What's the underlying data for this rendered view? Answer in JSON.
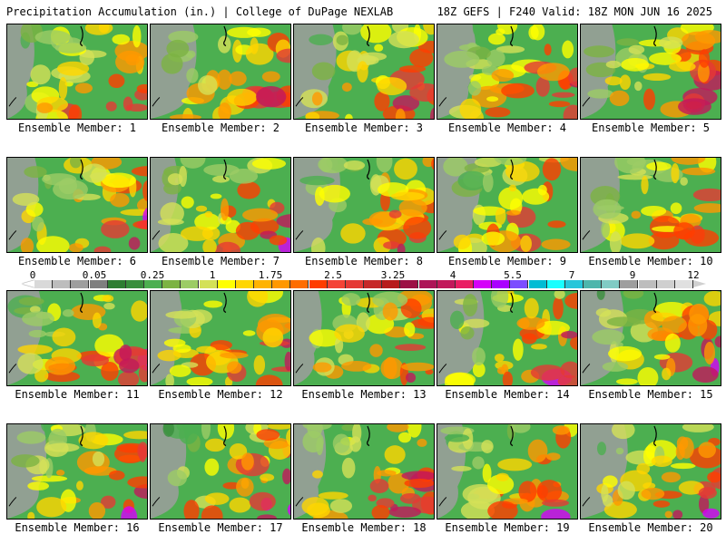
{
  "header": {
    "left_title": "Precipitation Accumulation (in.) | College of DuPage NEXLAB",
    "right_title": "18Z GEFS | F240 Valid: 18Z MON JUN 16 2025"
  },
  "panels": [
    {
      "label": "Ensemble Member: 1"
    },
    {
      "label": "Ensemble Member: 2"
    },
    {
      "label": "Ensemble Member: 3"
    },
    {
      "label": "Ensemble Member: 4"
    },
    {
      "label": "Ensemble Member: 5"
    },
    {
      "label": "Ensemble Member: 6"
    },
    {
      "label": "Ensemble Member: 7"
    },
    {
      "label": "Ensemble Member: 8"
    },
    {
      "label": "Ensemble Member: 9"
    },
    {
      "label": "Ensemble Member: 10"
    },
    {
      "label": "Ensemble Member: 11"
    },
    {
      "label": "Ensemble Member: 12"
    },
    {
      "label": "Ensemble Member: 13"
    },
    {
      "label": "Ensemble Member: 14"
    },
    {
      "label": "Ensemble Member: 15"
    },
    {
      "label": "Ensemble Member: 16"
    },
    {
      "label": "Ensemble Member: 17"
    },
    {
      "label": "Ensemble Member: 18"
    },
    {
      "label": "Ensemble Member: 19"
    },
    {
      "label": "Ensemble Member: 20"
    }
  ],
  "colorbar": {
    "labels": [
      "0",
      "0.05",
      "0.25",
      "1",
      "1.75",
      "2.5",
      "3.25",
      "4",
      "5.5",
      "7",
      "9",
      "12"
    ],
    "colors": [
      "#d9d9d9",
      "#bdbdbd",
      "#9e9e9e",
      "#7f7f7f",
      "#2e7d32",
      "#388e3c",
      "#4caf50",
      "#7cb342",
      "#9ccc65",
      "#d4e157",
      "#ffff00",
      "#ffd600",
      "#ffb300",
      "#ff9800",
      "#ff6d00",
      "#ff3d00",
      "#f44336",
      "#e53935",
      "#c62828",
      "#b71c1c",
      "#9c1045",
      "#ad1457",
      "#c2185b",
      "#e91e63",
      "#d500f9",
      "#aa00ff",
      "#7c4dff",
      "#00bcd4",
      "#18ffff",
      "#26c6da",
      "#4db6ac",
      "#80cbc4",
      "#9e9e9e",
      "#bdbdbd",
      "#cfcfcf",
      "#e0e0e0"
    ]
  }
}
